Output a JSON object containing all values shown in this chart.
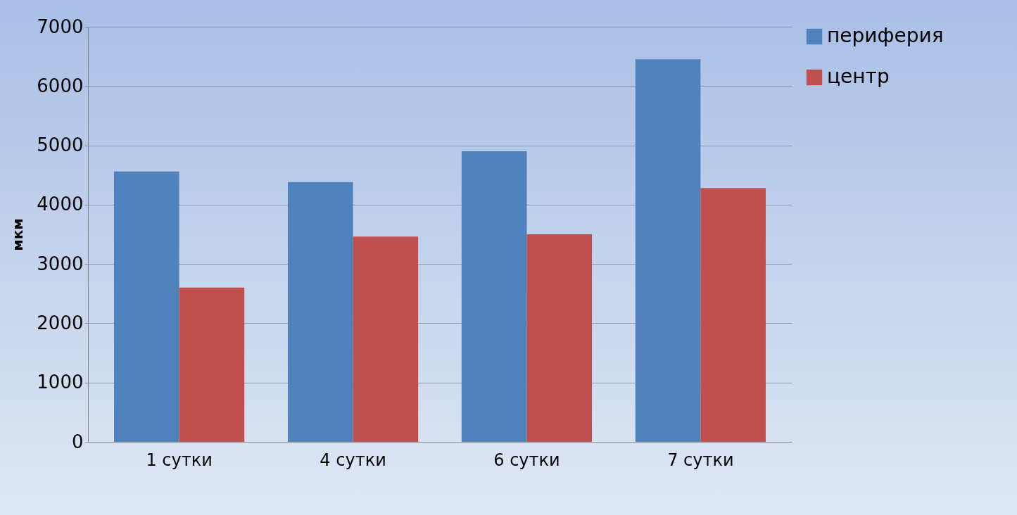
{
  "chart_data": {
    "type": "bar",
    "ylabel": "мкм",
    "categories": [
      "1 сутки",
      "4 сутки",
      "6 сутки",
      "7 сутки"
    ],
    "series": [
      {
        "name": "периферия",
        "color": "#4f81bd",
        "values": [
          4560,
          4380,
          4900,
          6450
        ]
      },
      {
        "name": "центр",
        "color": "#c0504d",
        "values": [
          2600,
          3460,
          3500,
          4280
        ]
      }
    ],
    "ylim": [
      0,
      7000
    ],
    "yticks": [
      0,
      1000,
      2000,
      3000,
      4000,
      5000,
      6000,
      7000
    ],
    "grid": "y",
    "legend": "right"
  }
}
